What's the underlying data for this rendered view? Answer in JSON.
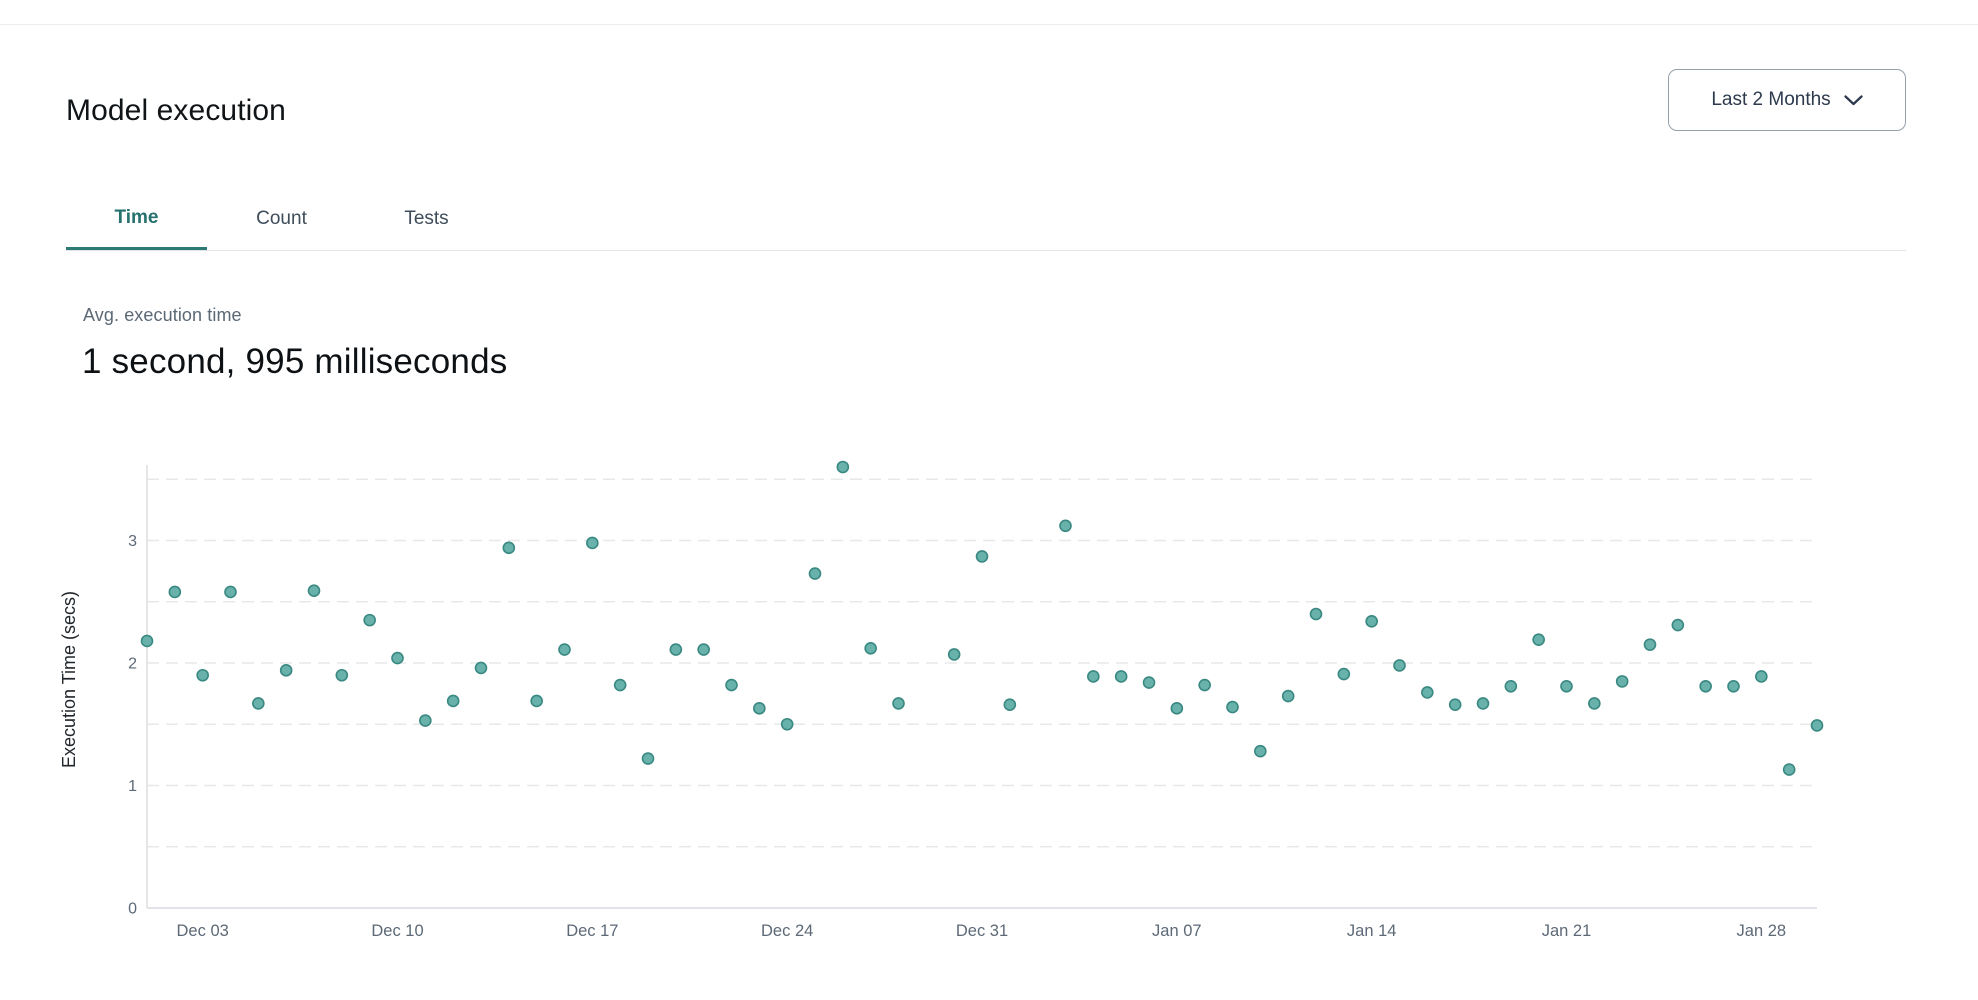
{
  "header": {
    "title": "Model execution",
    "range_selector": {
      "label": "Last 2 Months"
    }
  },
  "tabs": [
    {
      "label": "Time",
      "active": true
    },
    {
      "label": "Count",
      "active": false
    },
    {
      "label": "Tests",
      "active": false
    }
  ],
  "summary": {
    "label": "Avg. execution time",
    "value": "1 second, 995 milliseconds"
  },
  "colors": {
    "accent_teal": "#26716d",
    "tab_underline": "#2b7a74",
    "point_fill": "#68b2ab",
    "point_stroke": "#3a8882",
    "grid_line": "#e7e8ea",
    "axis_line": "#d9dcdf",
    "tick_label": "#5d6977",
    "muted_text": "#5b6875"
  },
  "chart_data": {
    "type": "scatter",
    "title": "",
    "xlabel": "",
    "ylabel": "Execution Time (secs)",
    "ylim": [
      0,
      3.6
    ],
    "y_ticks": [
      0,
      1,
      2,
      3
    ],
    "gridlines_y": [
      0.5,
      1,
      1.5,
      2,
      2.5,
      3,
      3.5
    ],
    "grid": "dashed-horizontal",
    "legend": "none",
    "x_ticks": [
      {
        "index": 2,
        "label": "Dec 03"
      },
      {
        "index": 9,
        "label": "Dec 10"
      },
      {
        "index": 16,
        "label": "Dec 17"
      },
      {
        "index": 23,
        "label": "Dec 24"
      },
      {
        "index": 30,
        "label": "Dec 31"
      },
      {
        "index": 37,
        "label": "Jan 07"
      },
      {
        "index": 44,
        "label": "Jan 14"
      },
      {
        "index": 51,
        "label": "Jan 21"
      },
      {
        "index": 58,
        "label": "Jan 28"
      }
    ],
    "x": [
      "Dec 01",
      "Dec 02",
      "Dec 03",
      "Dec 04",
      "Dec 05",
      "Dec 06",
      "Dec 07",
      "Dec 08",
      "Dec 09",
      "Dec 10",
      "Dec 11",
      "Dec 12",
      "Dec 13",
      "Dec 14",
      "Dec 15",
      "Dec 16",
      "Dec 17",
      "Dec 18",
      "Dec 19",
      "Dec 20",
      "Dec 21",
      "Dec 22",
      "Dec 23",
      "Dec 24",
      "Dec 25",
      "Dec 26",
      "Dec 27",
      "Dec 28",
      "Dec 29",
      "Dec 30",
      "Dec 31",
      "Jan 01",
      "Jan 02",
      "Jan 03",
      "Jan 04",
      "Jan 05",
      "Jan 06",
      "Jan 07",
      "Jan 08",
      "Jan 09",
      "Jan 10",
      "Jan 11",
      "Jan 12",
      "Jan 13",
      "Jan 14",
      "Jan 15",
      "Jan 16",
      "Jan 17",
      "Jan 18",
      "Jan 19",
      "Jan 20",
      "Jan 21",
      "Jan 22",
      "Jan 23",
      "Jan 24",
      "Jan 25",
      "Jan 26",
      "Jan 27",
      "Jan 28",
      "Jan 29",
      "Jan 30"
    ],
    "values": [
      2.18,
      2.58,
      1.9,
      2.58,
      1.67,
      1.94,
      2.59,
      1.9,
      2.35,
      2.04,
      1.53,
      1.69,
      1.96,
      2.94,
      1.69,
      2.11,
      2.98,
      1.82,
      1.22,
      2.11,
      2.11,
      1.82,
      1.63,
      1.5,
      2.73,
      3.6,
      2.12,
      1.67,
      null,
      2.07,
      2.87,
      1.66,
      null,
      3.12,
      1.89,
      1.89,
      1.84,
      1.63,
      1.82,
      1.64,
      1.28,
      1.73,
      2.4,
      1.91,
      2.34,
      1.98,
      1.76,
      1.66,
      1.67,
      1.81,
      2.19,
      1.81,
      1.67,
      1.85,
      2.15,
      2.31,
      1.81,
      1.81,
      1.89,
      1.13,
      1.49
    ]
  }
}
